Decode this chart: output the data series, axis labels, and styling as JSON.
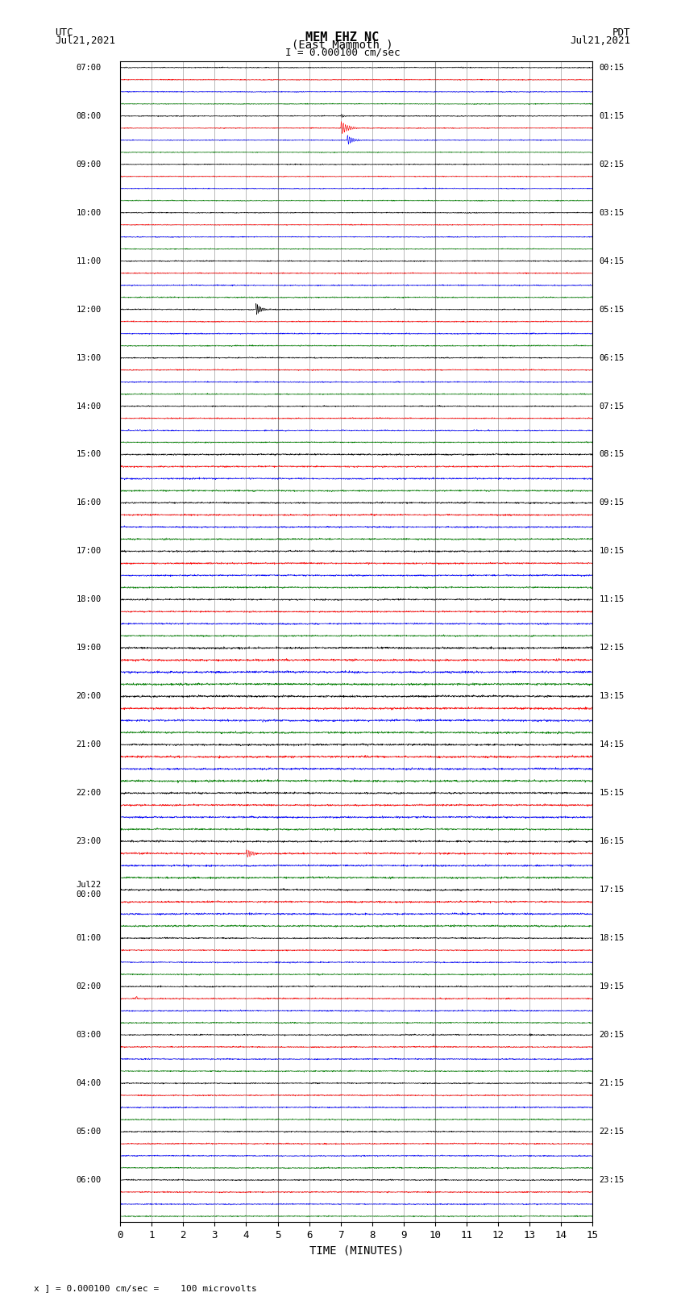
{
  "title_line1": "MEM EHZ NC",
  "title_line2": "(East Mammoth )",
  "scale_label": "I = 0.000100 cm/sec",
  "utc_label": "UTC",
  "utc_date": "Jul21,2021",
  "pdt_label": "PDT",
  "pdt_date": "Jul21,2021",
  "xlabel": "TIME (MINUTES)",
  "footer": "x ] = 0.000100 cm/sec =    100 microvolts",
  "xlim": [
    0,
    15
  ],
  "background_color": "white",
  "n_traces": 96,
  "left_labels": [
    "07:00",
    "",
    "",
    "",
    "08:00",
    "",
    "",
    "",
    "09:00",
    "",
    "",
    "",
    "10:00",
    "",
    "",
    "",
    "11:00",
    "",
    "",
    "",
    "12:00",
    "",
    "",
    "",
    "13:00",
    "",
    "",
    "",
    "14:00",
    "",
    "",
    "",
    "15:00",
    "",
    "",
    "",
    "16:00",
    "",
    "",
    "",
    "17:00",
    "",
    "",
    "",
    "18:00",
    "",
    "",
    "",
    "19:00",
    "",
    "",
    "",
    "20:00",
    "",
    "",
    "",
    "21:00",
    "",
    "",
    "",
    "22:00",
    "",
    "",
    "",
    "23:00",
    "",
    "",
    "",
    "Jul22\n00:00",
    "",
    "",
    "",
    "01:00",
    "",
    "",
    "",
    "02:00",
    "",
    "",
    "",
    "03:00",
    "",
    "",
    "",
    "04:00",
    "",
    "",
    "",
    "05:00",
    "",
    "",
    "",
    "06:00",
    "",
    "",
    ""
  ],
  "right_labels": [
    "00:15",
    "",
    "",
    "",
    "01:15",
    "",
    "",
    "",
    "02:15",
    "",
    "",
    "",
    "03:15",
    "",
    "",
    "",
    "04:15",
    "",
    "",
    "",
    "05:15",
    "",
    "",
    "",
    "06:15",
    "",
    "",
    "",
    "07:15",
    "",
    "",
    "",
    "08:15",
    "",
    "",
    "",
    "09:15",
    "",
    "",
    "",
    "10:15",
    "",
    "",
    "",
    "11:15",
    "",
    "",
    "",
    "12:15",
    "",
    "",
    "",
    "13:15",
    "",
    "",
    "",
    "14:15",
    "",
    "",
    "",
    "15:15",
    "",
    "",
    "",
    "16:15",
    "",
    "",
    "",
    "17:15",
    "",
    "",
    "",
    "18:15",
    "",
    "",
    "",
    "19:15",
    "",
    "",
    "",
    "20:15",
    "",
    "",
    "",
    "21:15",
    "",
    "",
    "",
    "22:15",
    "",
    "",
    "",
    "23:15",
    "",
    "",
    ""
  ]
}
